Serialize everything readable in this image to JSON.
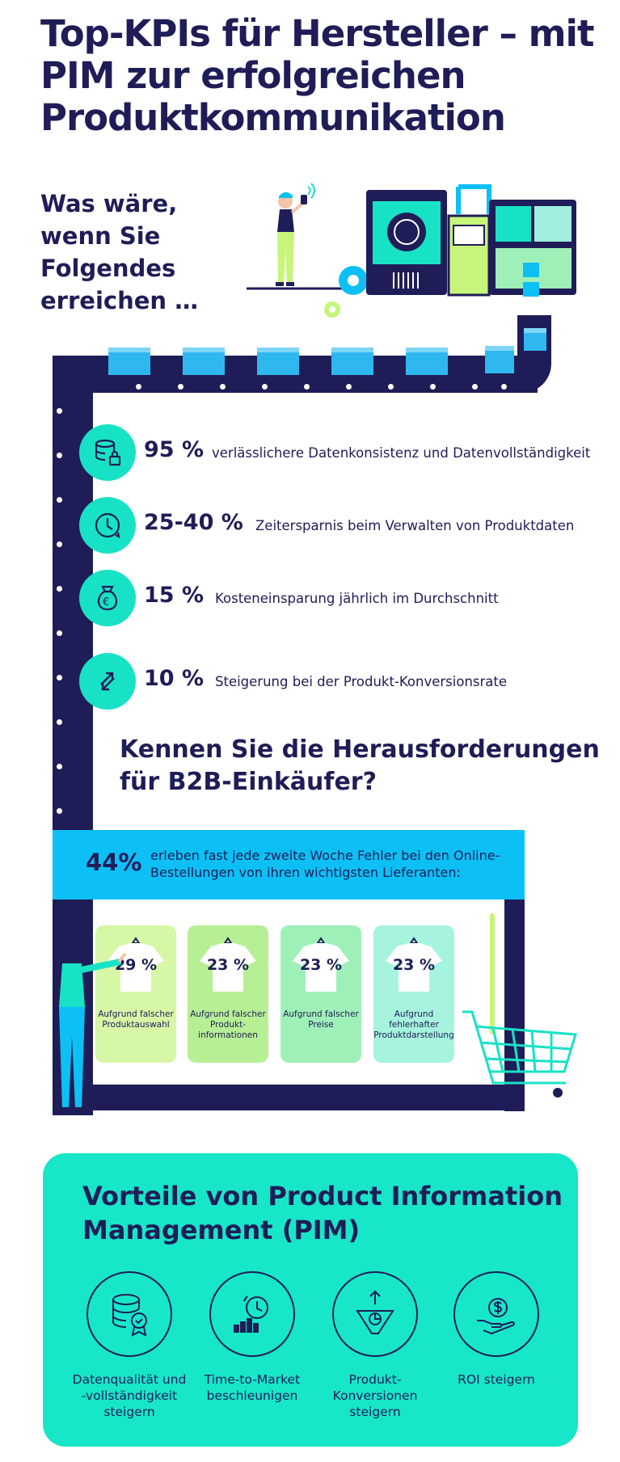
{
  "title": "Top-KPIs für Hersteller – mit PIM zur erfolgreichen Produktkommunikation",
  "subtitle": "Was wäre, wenn Sie Folgendes erreichen …",
  "kpis": [
    {
      "value": "95 %",
      "text": "verlässlichere Datenkonsistenz und Datenvollständigkeit",
      "icon": "database-lock-icon"
    },
    {
      "value": "25-40 %",
      "text": "Zeitersparnis beim Verwalten von Produktdaten",
      "icon": "clock-icon"
    },
    {
      "value": "15 %",
      "text": "Kosteneinsparung jährlich im Durchschnitt",
      "icon": "euro-money-bag-icon"
    },
    {
      "value": "10 %",
      "text": "Steigerung bei der Produkt-Konversionsrate",
      "icon": "arrows-exchange-icon"
    }
  ],
  "challenges": {
    "heading": "Kennen Sie die Herausforderungen für B2B-Einkäufer?",
    "percent": "44%",
    "text": "erleben fast jede zweite Woche Fehler bei den Online-Bestellungen von ihren wichtigsten Lieferanten:",
    "cards": [
      {
        "percent": "29 %",
        "label": "Aufgrund falscher Produktauswahl",
        "color": "#d6f7a6"
      },
      {
        "percent": "23 %",
        "label": "Aufgrund falscher Produkt-informationen",
        "color": "#b7ef95"
      },
      {
        "percent": "23 %",
        "label": "Aufgrund falscher Preise",
        "color": "#9ff0b8"
      },
      {
        "percent": "23 %",
        "label": "Aufgrund fehlerhafter Produktdarstellung",
        "color": "#a6f4dd"
      }
    ]
  },
  "benefits": {
    "title": "Vorteile von Product Information Management (PIM)",
    "items": [
      {
        "label": "Datenqualität und -vollständigkeit steigern",
        "icon": "database-badge-icon"
      },
      {
        "label": "Time-to-Market beschleunigen",
        "icon": "clock-chart-icon"
      },
      {
        "label": "Produkt-Konversionen steigern",
        "icon": "funnel-icon"
      },
      {
        "label": "ROI steigern",
        "icon": "hand-money-icon"
      }
    ]
  },
  "colors": {
    "navy": "#1f1d57",
    "teal": "#17e6c8",
    "blue": "#0cc0f5",
    "lime": "#c6f57a"
  }
}
